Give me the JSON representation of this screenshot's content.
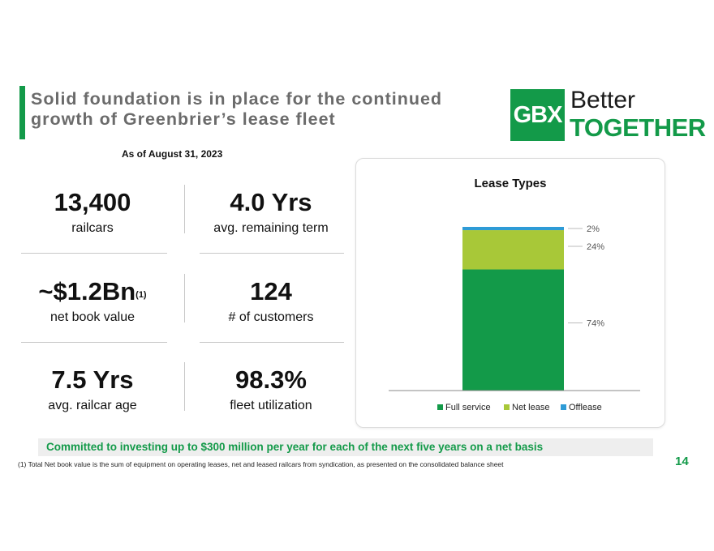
{
  "title": "Solid foundation is in place for the continued growth of Greenbrier’s lease fleet",
  "logo": {
    "box_text": "GBX",
    "line1": "Better",
    "line2": "TOGETHER"
  },
  "as_of": "As of August 31, 2023",
  "stats": [
    {
      "value": "13,400",
      "sup": "",
      "label": "railcars"
    },
    {
      "value": "4.0 Yrs",
      "sup": "",
      "label": "avg. remaining term"
    },
    {
      "value": "~$1.2Bn",
      "sup": "(1)",
      "label": "net book value"
    },
    {
      "value": "124",
      "sup": "",
      "label": "# of customers"
    },
    {
      "value": "7.5 Yrs",
      "sup": "",
      "label": "avg. railcar age"
    },
    {
      "value": "98.3%",
      "sup": "",
      "label": "fleet utilization"
    }
  ],
  "chart_data": {
    "type": "bar",
    "stacked": true,
    "title": "Lease Types",
    "categories": [
      ""
    ],
    "series": [
      {
        "name": "Full service",
        "values": [
          74
        ],
        "label": "74%",
        "color": "#139a49"
      },
      {
        "name": "Net lease",
        "values": [
          24
        ],
        "label": "24%",
        "color": "#a8c838"
      },
      {
        "name": "Offlease",
        "values": [
          2
        ],
        "label": "2%",
        "color": "#2e9bd6"
      }
    ],
    "ylim": [
      0,
      100
    ],
    "legend": "bottom",
    "grid": false
  },
  "commitment": "Committed to investing up to $300 million per year for each of the next five years on a net basis",
  "footnote": "(1) Total Net book value is the sum of equipment on operating leases, net and leased railcars from syndication, as presented on the consolidated balance sheet",
  "page_number": "14"
}
